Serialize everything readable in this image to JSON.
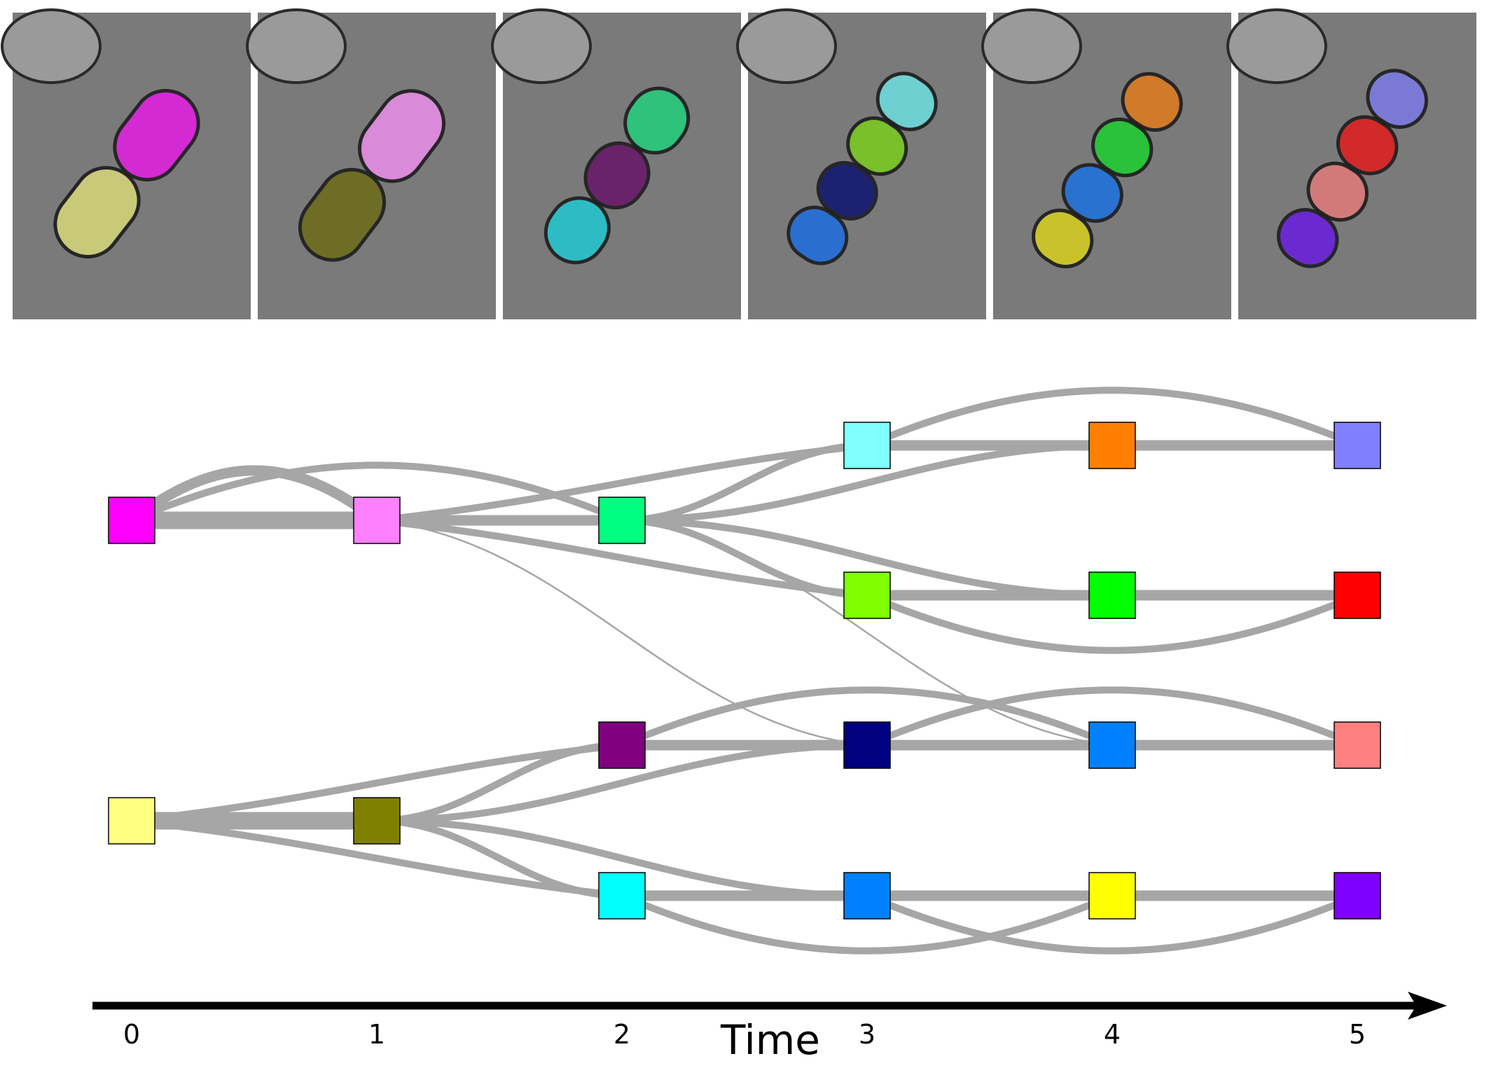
{
  "frames": [
    {
      "time": 0,
      "cells": [
        {
          "color": "#d42ad4"
        },
        {
          "color": "#c9c97a"
        }
      ]
    },
    {
      "time": 1,
      "cells": [
        {
          "color": "#d98ad9"
        },
        {
          "color": "#6d6d25"
        }
      ]
    },
    {
      "time": 2,
      "cells": [
        {
          "color": "#2ec27a"
        },
        {
          "color": "#6a236a"
        },
        {
          "color": "#2ebcc4"
        }
      ]
    },
    {
      "time": 3,
      "cells": [
        {
          "color": "#6ed0d0"
        },
        {
          "color": "#7ac02a"
        },
        {
          "color": "#1c2270"
        },
        {
          "color": "#2a6ed0"
        }
      ]
    },
    {
      "time": 4,
      "cells": [
        {
          "color": "#d07a2a"
        },
        {
          "color": "#2ac23a"
        },
        {
          "color": "#2a72d0"
        },
        {
          "color": "#c9c22a"
        }
      ]
    },
    {
      "time": 5,
      "cells": [
        {
          "color": "#7a7ad6"
        },
        {
          "color": "#d22a2a"
        },
        {
          "color": "#d27a7a"
        },
        {
          "color": "#6a2ad0"
        }
      ]
    }
  ],
  "nodes": [
    {
      "id": "t0a",
      "time": 0,
      "row": 1,
      "color": "#ff00ff"
    },
    {
      "id": "t0b",
      "time": 0,
      "row": 5,
      "color": "#ffff80"
    },
    {
      "id": "t1a",
      "time": 1,
      "row": 1,
      "color": "#ff80ff"
    },
    {
      "id": "t1b",
      "time": 1,
      "row": 5,
      "color": "#808000"
    },
    {
      "id": "t2a",
      "time": 2,
      "row": 1,
      "color": "#00ff80"
    },
    {
      "id": "t2b",
      "time": 2,
      "row": 4,
      "color": "#800080"
    },
    {
      "id": "t2c",
      "time": 2,
      "row": 6,
      "color": "#00ffff"
    },
    {
      "id": "t3a",
      "time": 3,
      "row": 0,
      "color": "#80ffff"
    },
    {
      "id": "t3b",
      "time": 3,
      "row": 2,
      "color": "#80ff00"
    },
    {
      "id": "t3c",
      "time": 3,
      "row": 4,
      "color": "#000080"
    },
    {
      "id": "t3d",
      "time": 3,
      "row": 6,
      "color": "#0080ff"
    },
    {
      "id": "t4a",
      "time": 4,
      "row": 0,
      "color": "#ff8000"
    },
    {
      "id": "t4b",
      "time": 4,
      "row": 2,
      "color": "#00ff00"
    },
    {
      "id": "t4c",
      "time": 4,
      "row": 4,
      "color": "#0080ff"
    },
    {
      "id": "t4d",
      "time": 4,
      "row": 6,
      "color": "#ffff00"
    },
    {
      "id": "t5a",
      "time": 5,
      "row": 0,
      "color": "#8080ff"
    },
    {
      "id": "t5b",
      "time": 5,
      "row": 2,
      "color": "#ff0000"
    },
    {
      "id": "t5c",
      "time": 5,
      "row": 4,
      "color": "#ff8080"
    },
    {
      "id": "t5d",
      "time": 5,
      "row": 6,
      "color": "#8000ff"
    }
  ],
  "edges": [
    {
      "from": "t0a",
      "to": "t1a",
      "weight": 5,
      "bend": 0
    },
    {
      "from": "t0a",
      "to": "t1a",
      "weight": 3,
      "bend": -1
    },
    {
      "from": "t0a",
      "to": "t2a",
      "weight": 2,
      "bend": -1
    },
    {
      "from": "t0b",
      "to": "t1b",
      "weight": 5,
      "bend": 0
    },
    {
      "from": "t0b",
      "to": "t2b",
      "weight": 2,
      "bend": -1
    },
    {
      "from": "t0b",
      "to": "t2c",
      "weight": 2,
      "bend": 1
    },
    {
      "from": "t1a",
      "to": "t2a",
      "weight": 3,
      "bend": 0
    },
    {
      "from": "t1a",
      "to": "t3a",
      "weight": 2,
      "bend": -1
    },
    {
      "from": "t1a",
      "to": "t3b",
      "weight": 2,
      "bend": 1
    },
    {
      "from": "t1a",
      "to": "t3c",
      "weight": 0.5,
      "bend": 1
    },
    {
      "from": "t1b",
      "to": "t2b",
      "weight": 2,
      "bend": 0
    },
    {
      "from": "t1b",
      "to": "t2c",
      "weight": 2,
      "bend": 0
    },
    {
      "from": "t1b",
      "to": "t3c",
      "weight": 2,
      "bend": 0
    },
    {
      "from": "t1b",
      "to": "t3d",
      "weight": 2,
      "bend": 0
    },
    {
      "from": "t2a",
      "to": "t3a",
      "weight": 2,
      "bend": 0
    },
    {
      "from": "t2a",
      "to": "t3b",
      "weight": 2,
      "bend": 0
    },
    {
      "from": "t2a",
      "to": "t4a",
      "weight": 2,
      "bend": 0
    },
    {
      "from": "t2a",
      "to": "t4b",
      "weight": 2,
      "bend": 0
    },
    {
      "from": "t2a",
      "to": "t4c",
      "weight": 0.5,
      "bend": 1
    },
    {
      "from": "t2b",
      "to": "t3c",
      "weight": 3,
      "bend": 0
    },
    {
      "from": "t2b",
      "to": "t4c",
      "weight": 2,
      "bend": -1
    },
    {
      "from": "t2c",
      "to": "t3d",
      "weight": 3,
      "bend": 0
    },
    {
      "from": "t2c",
      "to": "t4d",
      "weight": 2,
      "bend": 1
    },
    {
      "from": "t3a",
      "to": "t4a",
      "weight": 3,
      "bend": 0
    },
    {
      "from": "t3a",
      "to": "t5a",
      "weight": 2,
      "bend": -1
    },
    {
      "from": "t3b",
      "to": "t4b",
      "weight": 3,
      "bend": 0
    },
    {
      "from": "t3b",
      "to": "t5b",
      "weight": 2,
      "bend": 1
    },
    {
      "from": "t3c",
      "to": "t4c",
      "weight": 3,
      "bend": 0
    },
    {
      "from": "t3c",
      "to": "t5c",
      "weight": 2,
      "bend": -1
    },
    {
      "from": "t3d",
      "to": "t4d",
      "weight": 3,
      "bend": 0
    },
    {
      "from": "t3d",
      "to": "t5d",
      "weight": 2,
      "bend": 1
    },
    {
      "from": "t4a",
      "to": "t5a",
      "weight": 3,
      "bend": 0
    },
    {
      "from": "t4b",
      "to": "t5b",
      "weight": 3,
      "bend": 0
    },
    {
      "from": "t4c",
      "to": "t5c",
      "weight": 3,
      "bend": 0
    },
    {
      "from": "t4d",
      "to": "t5d",
      "weight": 3,
      "bend": 0
    }
  ],
  "axis": {
    "title": "Time",
    "ticks": [
      "0",
      "1",
      "2",
      "3",
      "4",
      "5"
    ]
  },
  "colors": {
    "edge": "#a6a6a6",
    "frame_background": "#7a7a7a",
    "axis": "#000000"
  }
}
